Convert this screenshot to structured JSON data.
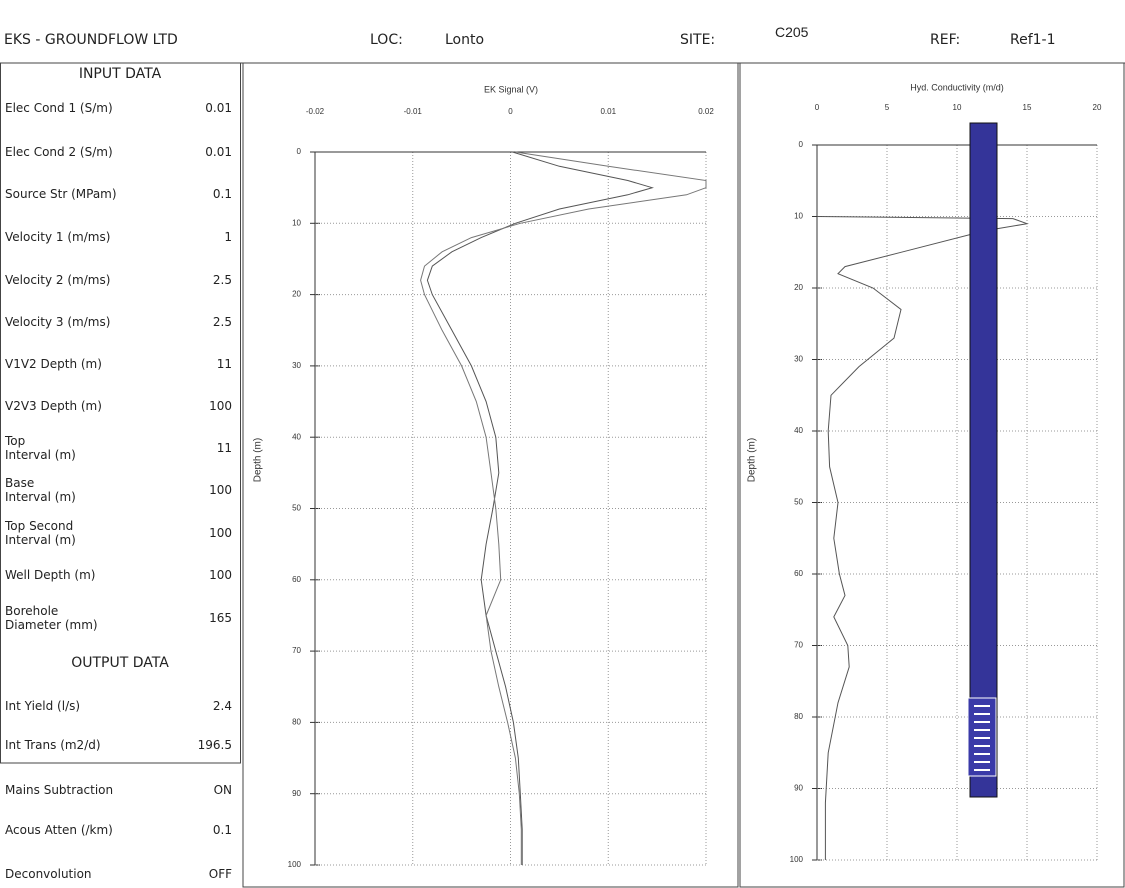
{
  "header": {
    "company": "EKS - GROUNDFLOW LTD",
    "loc_label": "LOC:",
    "loc": "Lonto",
    "site_label": "SITE:",
    "site": "C205",
    "ref_label": "REF:",
    "ref": "Ref1-1"
  },
  "input_data": {
    "title": "INPUT DATA",
    "rows": [
      [
        "Elec Cond 1 (S/m)",
        "0.01"
      ],
      [
        "Elec Cond 2 (S/m)",
        "0.01"
      ],
      [
        "Source Str (MPam)",
        "0.1"
      ],
      [
        "Velocity 1 (m/ms)",
        "1"
      ],
      [
        "Velocity 2 (m/ms)",
        "2.5"
      ],
      [
        "Velocity 3 (m/ms)",
        "2.5"
      ],
      [
        "V1V2 Depth (m)",
        "11"
      ],
      [
        "V2V3 Depth (m)",
        "100"
      ],
      [
        "Top\nInterval (m)",
        "11"
      ],
      [
        "Base\nInterval (m)",
        "100"
      ],
      [
        "Top Second\nInterval (m)",
        "100"
      ],
      [
        "Well Depth (m)",
        "100"
      ],
      [
        "Borehole\nDiameter (mm)",
        "165"
      ]
    ]
  },
  "output_data": {
    "title": "OUTPUT DATA",
    "rows": [
      [
        "Int Yield (l/s)",
        "2.4"
      ],
      [
        "Int Trans (m2/d)",
        "196.5"
      ]
    ]
  },
  "settings": {
    "rows": [
      [
        "Mains Subtraction",
        "ON"
      ],
      [
        "Acous Atten (/km)",
        "0.1"
      ],
      [
        "Deconvolution",
        "OFF"
      ]
    ]
  },
  "chart_data": [
    {
      "type": "line",
      "title": "EK Signal (V)",
      "y_label": "Depth (m)",
      "xlim": [
        -0.02,
        0.02
      ],
      "xticks": [
        -0.02,
        -0.01,
        0,
        0.01,
        0.02
      ],
      "ylim": [
        0,
        100
      ],
      "yticks": [
        0,
        10,
        20,
        30,
        40,
        50,
        60,
        70,
        80,
        90,
        100
      ],
      "grid": true,
      "y_inverted": true,
      "depths": [
        0,
        2,
        4,
        5,
        6,
        8,
        10,
        12,
        14,
        16,
        18,
        20,
        25,
        30,
        35,
        40,
        45,
        50,
        55,
        60,
        65,
        70,
        75,
        80,
        85,
        90,
        95,
        100
      ],
      "series": [
        {
          "color": "#555555",
          "values": [
            0.0002,
            0.005,
            0.012,
            0.0145,
            0.012,
            0.005,
            0.0005,
            -0.003,
            -0.006,
            -0.008,
            -0.0085,
            -0.008,
            -0.006,
            -0.004,
            -0.0025,
            -0.0015,
            -0.0012,
            -0.0018,
            -0.0025,
            -0.003,
            -0.0025,
            -0.0015,
            -0.0005,
            0.0003,
            0.0008,
            0.001,
            0.0012,
            0.0012
          ]
        },
        {
          "color": "#777777",
          "values": [
            0.0005,
            0.01,
            0.02,
            0.02,
            0.018,
            0.008,
            0.001,
            -0.004,
            -0.007,
            -0.0088,
            -0.0092,
            -0.0088,
            -0.007,
            -0.005,
            -0.0035,
            -0.0025,
            -0.002,
            -0.0015,
            -0.0012,
            -0.001,
            -0.0025,
            -0.002,
            -0.0012,
            -0.0003,
            0.0005,
            0.0009,
            0.0011,
            0.0011
          ]
        }
      ]
    },
    {
      "type": "line",
      "title": "Hyd. Conductivity (m/d)",
      "y_label": "Depth (m)",
      "xlim": [
        0,
        20
      ],
      "xticks": [
        0,
        5,
        10,
        15,
        20
      ],
      "ylim": [
        0,
        100
      ],
      "yticks": [
        0,
        10,
        20,
        30,
        40,
        50,
        60,
        70,
        80,
        90,
        100
      ],
      "grid": true,
      "y_inverted": true,
      "depths": [
        10,
        10.3,
        11,
        12,
        15,
        17,
        18,
        20,
        23,
        27,
        31,
        35,
        40,
        45,
        50,
        55,
        60,
        63,
        66,
        70,
        73,
        78,
        85,
        92,
        100
      ],
      "series": [
        {
          "color": "#555555",
          "values": [
            0,
            14,
            15,
            12,
            6,
            2,
            1.5,
            4,
            6,
            5.5,
            3,
            1,
            0.8,
            0.9,
            1.5,
            1.2,
            1.6,
            2,
            1.2,
            2.2,
            2.3,
            1.5,
            0.8,
            0.6,
            0.6
          ]
        }
      ]
    }
  ]
}
